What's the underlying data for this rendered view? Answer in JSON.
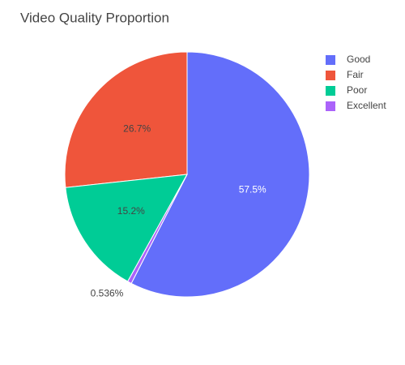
{
  "chart_data": {
    "type": "pie",
    "title": "Video Quality Proportion",
    "categories": [
      "Good",
      "Fair",
      "Poor",
      "Excellent"
    ],
    "values": [
      57.5,
      26.7,
      15.2,
      0.536
    ],
    "value_labels": [
      "57.5%",
      "26.7%",
      "15.2%",
      "0.536%"
    ],
    "colors": [
      "#636efa",
      "#EF553B",
      "#00cc96",
      "#ab63fa"
    ],
    "legend": "top-right"
  }
}
